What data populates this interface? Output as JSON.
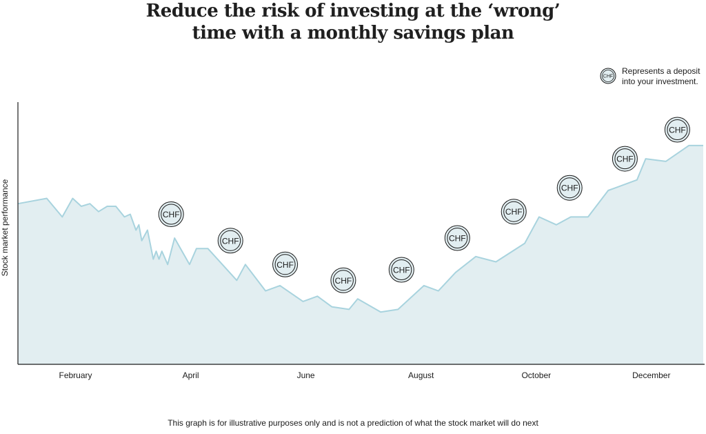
{
  "title": {
    "line1": "Reduce the risk of investing at the ‘wrong’",
    "line2": "time with a monthly savings plan"
  },
  "legend": {
    "icon": "chf-coin-icon",
    "text": "Represents a deposit\ninto your investment.",
    "coin_label": "CHF"
  },
  "footnote": "This graph is for illustrative purposes only and is not a prediction of what the stock market will do next",
  "colors": {
    "line": "#a8d3de",
    "fill": "#e2eef1",
    "axis": "#1a1a1a",
    "coin_fill": "#e2eef1",
    "coin_stroke": "#1a1a1a"
  },
  "chart_data": {
    "type": "area",
    "title": "Reduce the risk of investing at the ‘wrong’ time with a monthly savings plan",
    "xlabel": "",
    "ylabel": "Stock market performance",
    "xlim": [
      0,
      11.9
    ],
    "ylim": [
      0,
      100
    ],
    "x_ticks": [
      {
        "x": 1,
        "label": "February"
      },
      {
        "x": 3,
        "label": "April"
      },
      {
        "x": 5,
        "label": "June"
      },
      {
        "x": 7,
        "label": "August"
      },
      {
        "x": 9,
        "label": "October"
      },
      {
        "x": 11,
        "label": "December"
      }
    ],
    "series": [
      {
        "points": [
          [
            0,
            60
          ],
          [
            0.5,
            62
          ],
          [
            0.77,
            55
          ],
          [
            0.95,
            62
          ],
          [
            1.1,
            59
          ],
          [
            1.25,
            60
          ],
          [
            1.4,
            57
          ],
          [
            1.55,
            59
          ],
          [
            1.7,
            59
          ],
          [
            1.85,
            55
          ],
          [
            1.95,
            56
          ],
          [
            2.05,
            50
          ],
          [
            2.1,
            52
          ],
          [
            2.15,
            46
          ],
          [
            2.25,
            50
          ],
          [
            2.35,
            39
          ],
          [
            2.4,
            42
          ],
          [
            2.45,
            39
          ],
          [
            2.5,
            42
          ],
          [
            2.6,
            37
          ],
          [
            2.72,
            47
          ],
          [
            2.98,
            37
          ],
          [
            3.1,
            43
          ],
          [
            3.3,
            43
          ],
          [
            3.8,
            31
          ],
          [
            3.95,
            37
          ],
          [
            4.3,
            27
          ],
          [
            4.55,
            29
          ],
          [
            4.95,
            23
          ],
          [
            5.2,
            25
          ],
          [
            5.45,
            21
          ],
          [
            5.75,
            20
          ],
          [
            5.9,
            24
          ],
          [
            6.3,
            19
          ],
          [
            6.6,
            20
          ],
          [
            7.05,
            29
          ],
          [
            7.3,
            27
          ],
          [
            7.6,
            34
          ],
          [
            7.95,
            40
          ],
          [
            8.3,
            38
          ],
          [
            8.8,
            45
          ],
          [
            9.05,
            55
          ],
          [
            9.35,
            52
          ],
          [
            9.6,
            55
          ],
          [
            9.9,
            55
          ],
          [
            10.25,
            65
          ],
          [
            10.75,
            69
          ],
          [
            10.9,
            77
          ],
          [
            11.25,
            76
          ],
          [
            11.65,
            82
          ],
          [
            11.9,
            82
          ]
        ]
      }
    ],
    "deposits": [
      {
        "x": 2.66,
        "y": 56
      },
      {
        "x": 3.69,
        "y": 46
      },
      {
        "x": 4.64,
        "y": 37
      },
      {
        "x": 5.65,
        "y": 31
      },
      {
        "x": 6.66,
        "y": 35
      },
      {
        "x": 7.63,
        "y": 47
      },
      {
        "x": 8.61,
        "y": 57
      },
      {
        "x": 9.58,
        "y": 66
      },
      {
        "x": 10.54,
        "y": 77
      },
      {
        "x": 11.45,
        "y": 88
      }
    ],
    "grid": false,
    "legend_position": "top-right"
  }
}
